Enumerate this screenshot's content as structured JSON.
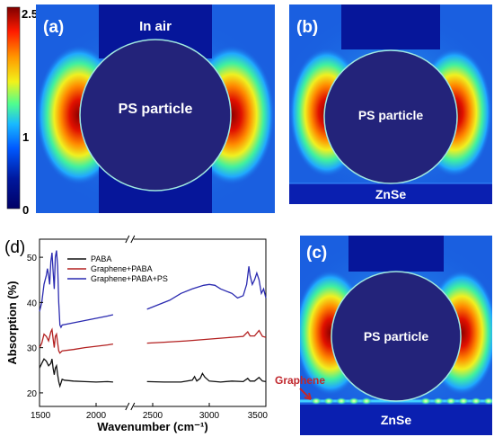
{
  "colorbar": {
    "max_label": "2.5",
    "mid_label": "1",
    "min_label": "0",
    "colors": [
      "#7f0000",
      "#ff1a00",
      "#ff9900",
      "#f2f21a",
      "#4ffe8f",
      "#19b9ff",
      "#0059ff",
      "#00189e",
      "#000066"
    ]
  },
  "panel_a": {
    "letter": "(a)",
    "medium_label": "In air",
    "particle_label": "PS particle"
  },
  "panel_b": {
    "letter": "(b)",
    "particle_label": "PS particle",
    "substrate_label": "ZnSe"
  },
  "panel_c": {
    "letter": "(c)",
    "particle_label": "PS particle",
    "substrate_label": "ZnSe",
    "layer_label": "Graphene"
  },
  "panel_d": {
    "letter": "(d)"
  },
  "chart_data": {
    "type": "line",
    "xlabel": "Wavenumber (cm⁻¹)",
    "ylabel": "Absorption (%)",
    "x_ticks": [
      "1500",
      "2000",
      "2500",
      "3000",
      "3500"
    ],
    "y_ticks": [
      "20",
      "30",
      "40",
      "50"
    ],
    "xlim": [
      1500,
      3500
    ],
    "ylim": [
      17,
      54
    ],
    "axis_break": [
      2150,
      2450
    ],
    "legend_position": "top-left",
    "series": [
      {
        "name": "PABA",
        "color": "#111111",
        "points": [
          [
            1500,
            25.5
          ],
          [
            1520,
            26.5
          ],
          [
            1540,
            27.5
          ],
          [
            1560,
            27
          ],
          [
            1580,
            26
          ],
          [
            1600,
            26.5
          ],
          [
            1610,
            27.5
          ],
          [
            1620,
            25.5
          ],
          [
            1630,
            24
          ],
          [
            1640,
            25.5
          ],
          [
            1650,
            26
          ],
          [
            1660,
            24
          ],
          [
            1670,
            22.5
          ],
          [
            1680,
            21.5
          ],
          [
            1690,
            22.2
          ],
          [
            1700,
            23
          ],
          [
            1720,
            22.8
          ],
          [
            1800,
            22.6
          ],
          [
            1900,
            22.5
          ],
          [
            2000,
            22.4
          ],
          [
            2100,
            22.5
          ],
          [
            2150,
            22.4
          ],
          [
            2450,
            22.5
          ],
          [
            2600,
            22.4
          ],
          [
            2750,
            22.4
          ],
          [
            2850,
            22.8
          ],
          [
            2870,
            23.6
          ],
          [
            2890,
            22.6
          ],
          [
            2920,
            23.2
          ],
          [
            2940,
            24.3
          ],
          [
            2960,
            23.5
          ],
          [
            3000,
            22.6
          ],
          [
            3100,
            22.4
          ],
          [
            3200,
            22.6
          ],
          [
            3300,
            22.5
          ],
          [
            3340,
            23.2
          ],
          [
            3360,
            22.6
          ],
          [
            3400,
            22.6
          ],
          [
            3440,
            23.4
          ],
          [
            3470,
            22.6
          ],
          [
            3500,
            22.5
          ]
        ]
      },
      {
        "name": "Graphene+PABA",
        "color": "#b32020",
        "points": [
          [
            1500,
            30
          ],
          [
            1520,
            31
          ],
          [
            1540,
            33
          ],
          [
            1560,
            32.5
          ],
          [
            1580,
            31.5
          ],
          [
            1600,
            33.5
          ],
          [
            1610,
            34
          ],
          [
            1620,
            32
          ],
          [
            1630,
            30
          ],
          [
            1640,
            32.5
          ],
          [
            1650,
            33
          ],
          [
            1660,
            31
          ],
          [
            1670,
            29.3
          ],
          [
            1680,
            28.8
          ],
          [
            1700,
            29.3
          ],
          [
            1800,
            29.6
          ],
          [
            1900,
            30
          ],
          [
            2000,
            30.3
          ],
          [
            2100,
            30.6
          ],
          [
            2150,
            30.8
          ],
          [
            2450,
            31
          ],
          [
            2600,
            31.2
          ],
          [
            2800,
            31.5
          ],
          [
            2900,
            31.7
          ],
          [
            3000,
            31.9
          ],
          [
            3100,
            32.1
          ],
          [
            3200,
            32.3
          ],
          [
            3300,
            32.5
          ],
          [
            3340,
            33.5
          ],
          [
            3360,
            32.6
          ],
          [
            3400,
            32.6
          ],
          [
            3440,
            33.8
          ],
          [
            3470,
            32.5
          ],
          [
            3500,
            32.3
          ]
        ]
      },
      {
        "name": "Graphene+PABA+PS",
        "color": "#2a2ab0",
        "points": [
          [
            1500,
            38
          ],
          [
            1520,
            40
          ],
          [
            1540,
            44
          ],
          [
            1560,
            46
          ],
          [
            1570,
            47.5
          ],
          [
            1580,
            46
          ],
          [
            1590,
            44
          ],
          [
            1600,
            49
          ],
          [
            1610,
            51
          ],
          [
            1620,
            47
          ],
          [
            1630,
            43
          ],
          [
            1640,
            50
          ],
          [
            1650,
            51.5
          ],
          [
            1660,
            48
          ],
          [
            1670,
            40
          ],
          [
            1680,
            35
          ],
          [
            1690,
            34.5
          ],
          [
            1700,
            35
          ],
          [
            1800,
            35.5
          ],
          [
            1900,
            36
          ],
          [
            2000,
            36.5
          ],
          [
            2100,
            37
          ],
          [
            2150,
            37.3
          ],
          [
            2450,
            38.5
          ],
          [
            2550,
            39.5
          ],
          [
            2650,
            40.5
          ],
          [
            2750,
            42
          ],
          [
            2850,
            43
          ],
          [
            2950,
            43.8
          ],
          [
            3000,
            44
          ],
          [
            3050,
            43.8
          ],
          [
            3100,
            43
          ],
          [
            3200,
            42
          ],
          [
            3250,
            41
          ],
          [
            3300,
            41.5
          ],
          [
            3330,
            44
          ],
          [
            3350,
            48
          ],
          [
            3360,
            46
          ],
          [
            3380,
            44
          ],
          [
            3400,
            45
          ],
          [
            3420,
            46.5
          ],
          [
            3440,
            45
          ],
          [
            3460,
            42
          ],
          [
            3480,
            43
          ],
          [
            3500,
            41
          ]
        ]
      }
    ]
  }
}
